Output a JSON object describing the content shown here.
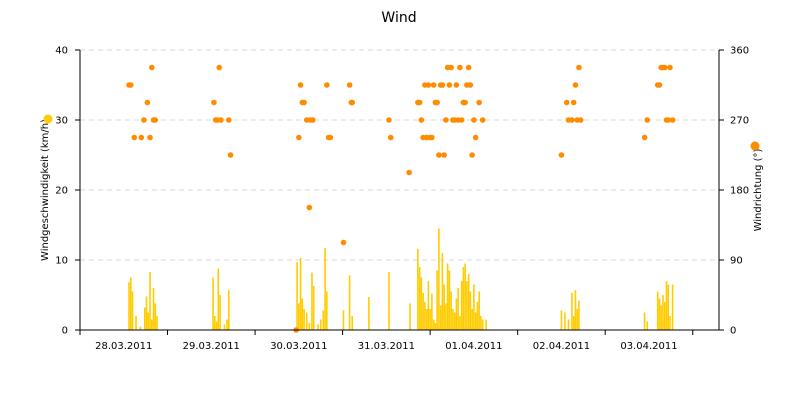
{
  "chart_data": {
    "type": "bar",
    "title": "Wind",
    "x_axis": {
      "tick_labels": [
        "28.03.2011",
        "29.03.2011",
        "30.03.2011",
        "31.03.2011",
        "01.04.2011",
        "02.04.2011",
        "03.04.2011"
      ],
      "range_days": [
        27.0,
        34.3
      ]
    },
    "y_left": {
      "label": "Windgeschwindigkeit (km/h)",
      "ticks": [
        0,
        10,
        20,
        30,
        40
      ],
      "range": [
        0,
        40
      ],
      "legend_color": "#ffcc00"
    },
    "y_right": {
      "label": "Windrichtung (°)",
      "ticks": [
        0,
        90,
        180,
        270,
        360
      ],
      "range": [
        0,
        360
      ],
      "legend_color": "#ff8c00"
    },
    "grid": "horizontal dashed",
    "colors": {
      "speed": "#ffcc00",
      "direction": "#ff8c00"
    },
    "series": [
      {
        "kind": "bar",
        "axis": "left",
        "points": [
          [
            27.56,
            6.8
          ],
          [
            27.58,
            7.5
          ],
          [
            27.6,
            5.5
          ],
          [
            27.64,
            2.0
          ],
          [
            27.69,
            0.5
          ],
          [
            27.74,
            3.2
          ],
          [
            27.76,
            4.8
          ],
          [
            27.78,
            2.5
          ],
          [
            27.8,
            8.3
          ],
          [
            27.82,
            1.5
          ],
          [
            27.84,
            6.0
          ],
          [
            27.86,
            3.8
          ],
          [
            27.88,
            2.0
          ],
          [
            28.52,
            7.5
          ],
          [
            28.54,
            2.0
          ],
          [
            28.56,
            1.2
          ],
          [
            28.58,
            8.8
          ],
          [
            28.6,
            5.0
          ],
          [
            28.65,
            0.8
          ],
          [
            28.68,
            1.5
          ],
          [
            28.7,
            5.7
          ],
          [
            29.48,
            9.7
          ],
          [
            29.5,
            3.8
          ],
          [
            29.52,
            10.3
          ],
          [
            29.54,
            4.5
          ],
          [
            29.56,
            3.0
          ],
          [
            29.59,
            2.5
          ],
          [
            29.62,
            1.0
          ],
          [
            29.65,
            8.2
          ],
          [
            29.67,
            6.3
          ],
          [
            29.72,
            0.8
          ],
          [
            29.75,
            1.5
          ],
          [
            29.78,
            2.8
          ],
          [
            29.8,
            11.7
          ],
          [
            29.82,
            5.5
          ],
          [
            30.01,
            2.8
          ],
          [
            30.08,
            7.8
          ],
          [
            30.11,
            2.0
          ],
          [
            30.3,
            4.7
          ],
          [
            30.53,
            8.3
          ],
          [
            30.77,
            3.8
          ],
          [
            30.86,
            11.6
          ],
          [
            30.88,
            9.0
          ],
          [
            30.9,
            7.5
          ],
          [
            30.92,
            5.3
          ],
          [
            30.94,
            4.0
          ],
          [
            30.96,
            3.0
          ],
          [
            30.98,
            7.0
          ],
          [
            31.0,
            3.0
          ],
          [
            31.02,
            5.2
          ],
          [
            31.04,
            1.5
          ],
          [
            31.06,
            1.0
          ],
          [
            31.08,
            8.5
          ],
          [
            31.1,
            14.5
          ],
          [
            31.12,
            3.5
          ],
          [
            31.14,
            11.0
          ],
          [
            31.16,
            6.5
          ],
          [
            31.18,
            3.8
          ],
          [
            31.2,
            9.5
          ],
          [
            31.22,
            8.5
          ],
          [
            31.24,
            5.5
          ],
          [
            31.26,
            3.0
          ],
          [
            31.28,
            2.5
          ],
          [
            31.3,
            4.5
          ],
          [
            31.32,
            6.0
          ],
          [
            31.34,
            2.0
          ],
          [
            31.36,
            7.0
          ],
          [
            31.38,
            9.0
          ],
          [
            31.4,
            9.5
          ],
          [
            31.42,
            7.0
          ],
          [
            31.44,
            8.0
          ],
          [
            31.46,
            5.5
          ],
          [
            31.48,
            3.0
          ],
          [
            31.5,
            6.5
          ],
          [
            31.52,
            2.5
          ],
          [
            31.54,
            4.0
          ],
          [
            31.56,
            5.5
          ],
          [
            31.58,
            2.0
          ],
          [
            31.6,
            1.5
          ],
          [
            31.64,
            1.5
          ],
          [
            32.5,
            2.8
          ],
          [
            32.54,
            2.5
          ],
          [
            32.58,
            1.5
          ],
          [
            32.62,
            5.3
          ],
          [
            32.64,
            2.0
          ],
          [
            32.66,
            5.7
          ],
          [
            32.68,
            3.0
          ],
          [
            32.7,
            4.2
          ],
          [
            33.45,
            2.5
          ],
          [
            33.48,
            1.2
          ],
          [
            33.6,
            5.5
          ],
          [
            33.62,
            4.5
          ],
          [
            33.64,
            3.5
          ],
          [
            33.66,
            5.0
          ],
          [
            33.68,
            4.0
          ],
          [
            33.7,
            7.0
          ],
          [
            33.72,
            6.5
          ],
          [
            33.74,
            2.0
          ],
          [
            33.77,
            6.5
          ]
        ]
      },
      {
        "kind": "scatter",
        "axis": "right",
        "points": [
          [
            27.56,
            315
          ],
          [
            27.58,
            315
          ],
          [
            27.62,
            247.5
          ],
          [
            27.7,
            247.5
          ],
          [
            27.73,
            270
          ],
          [
            27.77,
            292.5
          ],
          [
            27.8,
            247.5
          ],
          [
            27.82,
            337.5
          ],
          [
            27.84,
            270
          ],
          [
            27.86,
            270
          ],
          [
            28.53,
            292.5
          ],
          [
            28.55,
            270
          ],
          [
            28.57,
            270
          ],
          [
            28.59,
            337.5
          ],
          [
            28.61,
            270
          ],
          [
            28.7,
            270
          ],
          [
            28.72,
            225
          ],
          [
            29.47,
            0
          ],
          [
            29.5,
            247.5
          ],
          [
            29.52,
            315
          ],
          [
            29.54,
            292.5
          ],
          [
            29.56,
            292.5
          ],
          [
            29.59,
            270
          ],
          [
            29.62,
            157.5
          ],
          [
            29.63,
            270
          ],
          [
            29.66,
            270
          ],
          [
            29.82,
            315
          ],
          [
            29.84,
            247.5
          ],
          [
            29.86,
            247.5
          ],
          [
            30.01,
            112.5
          ],
          [
            30.08,
            315
          ],
          [
            30.1,
            292.5
          ],
          [
            30.11,
            292.5
          ],
          [
            30.53,
            270
          ],
          [
            30.55,
            247.5
          ],
          [
            30.76,
            202.5
          ],
          [
            30.86,
            292.5
          ],
          [
            30.88,
            292.5
          ],
          [
            30.9,
            270
          ],
          [
            30.92,
            247.5
          ],
          [
            30.94,
            315
          ],
          [
            30.96,
            247.5
          ],
          [
            30.98,
            315
          ],
          [
            31.0,
            247.5
          ],
          [
            31.02,
            247.5
          ],
          [
            31.04,
            315
          ],
          [
            31.06,
            292.5
          ],
          [
            31.08,
            292.5
          ],
          [
            31.1,
            225
          ],
          [
            31.12,
            315
          ],
          [
            31.14,
            315
          ],
          [
            31.16,
            225
          ],
          [
            31.18,
            270
          ],
          [
            31.2,
            337.5
          ],
          [
            31.22,
            315
          ],
          [
            31.24,
            337.5
          ],
          [
            31.26,
            270
          ],
          [
            31.28,
            270
          ],
          [
            31.3,
            315
          ],
          [
            31.32,
            270
          ],
          [
            31.34,
            337.5
          ],
          [
            31.36,
            270
          ],
          [
            31.38,
            292.5
          ],
          [
            31.4,
            292.5
          ],
          [
            31.42,
            315
          ],
          [
            31.44,
            337.5
          ],
          [
            31.46,
            315
          ],
          [
            31.48,
            225
          ],
          [
            31.5,
            270
          ],
          [
            31.52,
            247.5
          ],
          [
            31.56,
            292.5
          ],
          [
            31.6,
            270
          ],
          [
            32.5,
            225
          ],
          [
            32.56,
            292.5
          ],
          [
            32.58,
            270
          ],
          [
            32.62,
            270
          ],
          [
            32.64,
            292.5
          ],
          [
            32.66,
            315
          ],
          [
            32.68,
            270
          ],
          [
            32.7,
            337.5
          ],
          [
            32.72,
            270
          ],
          [
            33.45,
            247.5
          ],
          [
            33.48,
            270
          ],
          [
            33.6,
            315
          ],
          [
            33.62,
            315
          ],
          [
            33.64,
            337.5
          ],
          [
            33.66,
            337.5
          ],
          [
            33.68,
            337.5
          ],
          [
            33.7,
            270
          ],
          [
            33.72,
            270
          ],
          [
            33.74,
            337.5
          ],
          [
            33.77,
            270
          ]
        ]
      }
    ]
  }
}
